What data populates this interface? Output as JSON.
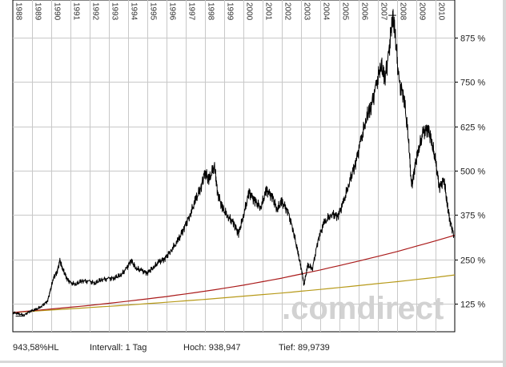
{
  "chart_data": {
    "type": "line",
    "x_tick_labels": [
      "1988",
      "1989",
      "1990",
      "1991",
      "1992",
      "1993",
      "1994",
      "1995",
      "1996",
      "1997",
      "1998",
      "1999",
      "2000",
      "2001",
      "2002",
      "2003",
      "2004",
      "2005",
      "2006",
      "2007",
      "2008",
      "2009",
      "2010"
    ],
    "y_tick_labels": [
      "875 %",
      "750 %",
      "625 %",
      "500 %",
      "375 %",
      "250 %",
      "125 %"
    ],
    "y_ticks": [
      875,
      750,
      625,
      500,
      375,
      250,
      125
    ],
    "xlim": [
      1988.0,
      2011.0
    ],
    "ylim": [
      90,
      950
    ],
    "grid": true,
    "watermark": ".comdirect",
    "series": [
      {
        "color": "#000000",
        "points": [
          [
            1988.0,
            100
          ],
          [
            1988.3,
            96
          ],
          [
            1988.6,
            93
          ],
          [
            1988.9,
            104
          ],
          [
            1989.2,
            108
          ],
          [
            1989.5,
            118
          ],
          [
            1989.8,
            132
          ],
          [
            1989.95,
            160
          ],
          [
            1990.1,
            195
          ],
          [
            1990.3,
            215
          ],
          [
            1990.45,
            245
          ],
          [
            1990.6,
            222
          ],
          [
            1990.8,
            198
          ],
          [
            1991.0,
            183
          ],
          [
            1991.3,
            180
          ],
          [
            1991.6,
            190
          ],
          [
            1992.0,
            187
          ],
          [
            1992.3,
            183
          ],
          [
            1992.6,
            193
          ],
          [
            1993.0,
            195
          ],
          [
            1993.3,
            198
          ],
          [
            1993.6,
            205
          ],
          [
            1993.9,
            222
          ],
          [
            1994.15,
            248
          ],
          [
            1994.4,
            225
          ],
          [
            1994.7,
            218
          ],
          [
            1995.0,
            212
          ],
          [
            1995.3,
            226
          ],
          [
            1995.6,
            242
          ],
          [
            1995.9,
            252
          ],
          [
            1996.2,
            272
          ],
          [
            1996.6,
            302
          ],
          [
            1996.9,
            338
          ],
          [
            1997.2,
            372
          ],
          [
            1997.5,
            415
          ],
          [
            1997.8,
            455
          ],
          [
            1998.0,
            498
          ],
          [
            1998.2,
            472
          ],
          [
            1998.5,
            515
          ],
          [
            1998.65,
            440
          ],
          [
            1998.9,
            395
          ],
          [
            1999.2,
            370
          ],
          [
            1999.5,
            352
          ],
          [
            1999.75,
            322
          ],
          [
            2000.0,
            372
          ],
          [
            2000.3,
            440
          ],
          [
            2000.6,
            415
          ],
          [
            2000.9,
            395
          ],
          [
            2001.2,
            445
          ],
          [
            2001.5,
            428
          ],
          [
            2001.75,
            390
          ],
          [
            2002.0,
            412
          ],
          [
            2002.3,
            388
          ],
          [
            2002.6,
            330
          ],
          [
            2002.85,
            265
          ],
          [
            2003.05,
            215
          ],
          [
            2003.15,
            178
          ],
          [
            2003.35,
            232
          ],
          [
            2003.6,
            225
          ],
          [
            2003.9,
            308
          ],
          [
            2004.2,
            352
          ],
          [
            2004.6,
            378
          ],
          [
            2004.9,
            372
          ],
          [
            2005.2,
            408
          ],
          [
            2005.5,
            465
          ],
          [
            2005.8,
            515
          ],
          [
            2006.1,
            580
          ],
          [
            2006.4,
            648
          ],
          [
            2006.6,
            675
          ],
          [
            2006.9,
            735
          ],
          [
            2007.15,
            800
          ],
          [
            2007.35,
            760
          ],
          [
            2007.55,
            820
          ],
          [
            2007.75,
            935
          ],
          [
            2007.9,
            888
          ],
          [
            2008.1,
            748
          ],
          [
            2008.35,
            712
          ],
          [
            2008.6,
            585
          ],
          [
            2008.75,
            452
          ],
          [
            2008.9,
            505
          ],
          [
            2009.1,
            555
          ],
          [
            2009.35,
            605
          ],
          [
            2009.6,
            622
          ],
          [
            2009.8,
            582
          ],
          [
            2010.0,
            525
          ],
          [
            2010.2,
            455
          ],
          [
            2010.45,
            475
          ],
          [
            2010.6,
            405
          ],
          [
            2010.75,
            360
          ],
          [
            2010.95,
            318
          ]
        ]
      },
      {
        "color": "#aa1b1b",
        "points": [
          [
            1988.0,
            100
          ],
          [
            1990.0,
            110
          ],
          [
            1992.0,
            120
          ],
          [
            1994.0,
            132
          ],
          [
            1996.0,
            145
          ],
          [
            1998.0,
            160
          ],
          [
            2000.0,
            177
          ],
          [
            2002.0,
            197
          ],
          [
            2004.0,
            220
          ],
          [
            2006.0,
            245
          ],
          [
            2008.0,
            272
          ],
          [
            2010.0,
            302
          ],
          [
            2011.0,
            318
          ]
        ]
      },
      {
        "color": "#b79a1a",
        "points": [
          [
            1988.0,
            100
          ],
          [
            1990.0,
            107
          ],
          [
            1992.0,
            114
          ],
          [
            1994.0,
            121
          ],
          [
            1996.0,
            129
          ],
          [
            1998.0,
            137
          ],
          [
            2000.0,
            146
          ],
          [
            2002.0,
            155
          ],
          [
            2004.0,
            165
          ],
          [
            2006.0,
            176
          ],
          [
            2008.0,
            187
          ],
          [
            2010.0,
            199
          ],
          [
            2011.0,
            206
          ]
        ]
      }
    ]
  },
  "footer": {
    "value": "943,58%HL",
    "interval": "Intervall: 1 Tag",
    "high": "Hoch:  938,947",
    "low": "Tief: 89,9739"
  }
}
